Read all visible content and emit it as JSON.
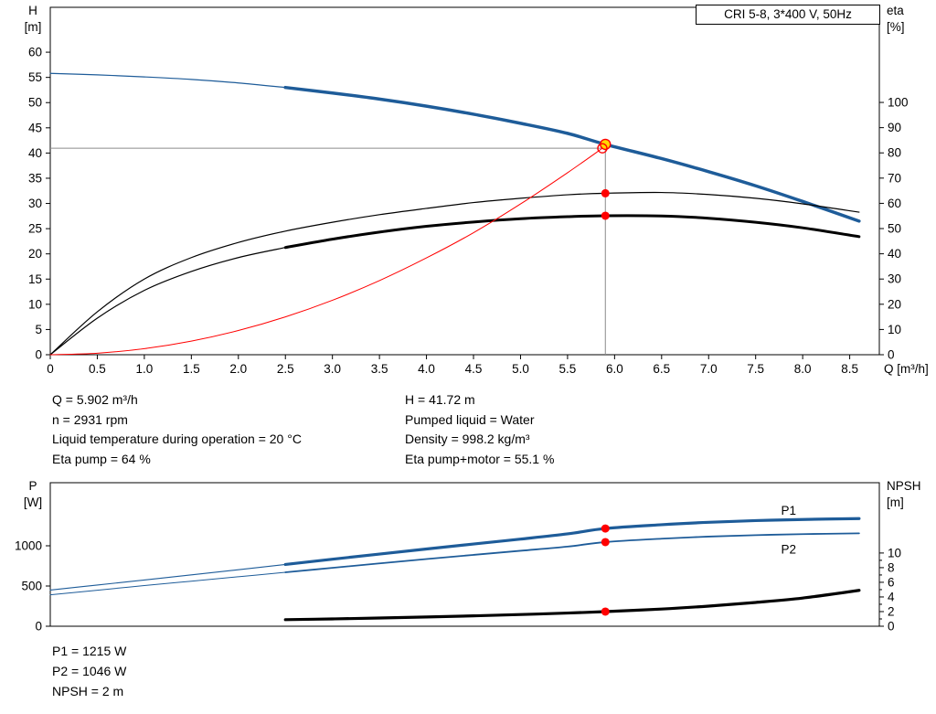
{
  "title_box": "CRI 5-8, 3*400 V, 50Hz",
  "colors": {
    "blue": "#1E5C99",
    "red": "#FF0000",
    "yellow": "#FFD800",
    "black": "#000000",
    "gray": "#8C8C8C"
  },
  "info_top": {
    "left": [
      "Q = 5.902 m³/h",
      "n = 2931 rpm",
      "Liquid temperature during operation = 20 °C",
      "Eta pump = 64 %"
    ],
    "right": [
      "H = 41.72 m",
      "Pumped liquid = Water",
      "Density = 998.2 kg/m³",
      "Eta pump+motor = 55.1 %"
    ]
  },
  "info_bottom": [
    "P1 = 1215 W",
    "P2 = 1046 W",
    "NPSH = 2 m"
  ],
  "chart_data": [
    {
      "type": "line",
      "name": "hq-eta-chart",
      "title": "CRI 5-8, 3*400 V, 50Hz",
      "x": {
        "min": 0,
        "max": 8.815,
        "title": "Q [m³/h]",
        "ticks": [
          0,
          0.5,
          1,
          1.5,
          2,
          2.5,
          3,
          3.5,
          4,
          4.5,
          5,
          5.5,
          6,
          6.5,
          7,
          7.5,
          8,
          8.5
        ],
        "labels": [
          "0",
          "0.5",
          "1.0",
          "1.5",
          "2.0",
          "2.5",
          "3.0",
          "3.5",
          "4.0",
          "4.5",
          "5.0",
          "5.5",
          "6.0",
          "6.5",
          "7.0",
          "7.5",
          "8.0",
          "8.5"
        ]
      },
      "y_left": {
        "min": 0,
        "max": 68.9,
        "title_lines": [
          "H",
          "[m]"
        ],
        "ticks": [
          0,
          5,
          10,
          15,
          20,
          25,
          30,
          35,
          40,
          45,
          50,
          55,
          60
        ]
      },
      "y_right": {
        "min": 0,
        "max": 137.7,
        "title_lines": [
          "eta",
          "[%]"
        ],
        "ticks": [
          0,
          10,
          20,
          30,
          40,
          50,
          60,
          70,
          80,
          90,
          100
        ]
      },
      "series": [
        {
          "name": "pump-curve",
          "axis": "left",
          "color": "#1E5C99",
          "segments": [
            {
              "width": 1.2,
              "points": [
                [
                  0,
                  55.8
                ],
                [
                  0.5,
                  55.5
                ],
                [
                  1,
                  55.1
                ],
                [
                  1.5,
                  54.6
                ],
                [
                  2,
                  53.9
                ],
                [
                  2.5,
                  53.0
                ]
              ]
            },
            {
              "width": 3.5,
              "points": [
                [
                  2.5,
                  53.0
                ],
                [
                  3,
                  51.9
                ],
                [
                  3.5,
                  50.7
                ],
                [
                  4,
                  49.3
                ],
                [
                  4.5,
                  47.7
                ],
                [
                  5,
                  45.9
                ],
                [
                  5.5,
                  43.9
                ],
                [
                  5.902,
                  41.72
                ],
                [
                  6.5,
                  38.9
                ],
                [
                  7,
                  36.3
                ],
                [
                  7.5,
                  33.5
                ],
                [
                  8,
                  30.4
                ],
                [
                  8.6,
                  26.5
                ]
              ]
            }
          ]
        },
        {
          "name": "eta-pump-curve",
          "axis": "right",
          "color": "#000000",
          "segments": [
            {
              "width": 1.2,
              "points": [
                [
                  0,
                  0
                ],
                [
                  0.5,
                  17
                ],
                [
                  1,
                  30
                ],
                [
                  1.5,
                  38.5
                ],
                [
                  2,
                  44.5
                ],
                [
                  2.5,
                  49
                ],
                [
                  3,
                  52.5
                ],
                [
                  3.5,
                  55.5
                ],
                [
                  4,
                  58
                ],
                [
                  4.5,
                  60.3
                ],
                [
                  5,
                  62
                ],
                [
                  5.5,
                  63.4
                ],
                [
                  5.902,
                  64
                ],
                [
                  6.5,
                  64.3
                ],
                [
                  7,
                  63.5
                ],
                [
                  7.5,
                  62
                ],
                [
                  8,
                  59.8
                ],
                [
                  8.6,
                  56.5
                ]
              ]
            }
          ]
        },
        {
          "name": "eta-pump-motor-curve",
          "axis": "right",
          "color": "#000000",
          "segments": [
            {
              "width": 1.2,
              "points": [
                [
                  0,
                  0
                ],
                [
                  0.5,
                  14.5
                ],
                [
                  1,
                  25.5
                ],
                [
                  1.5,
                  33
                ],
                [
                  2,
                  38.5
                ],
                [
                  2.5,
                  42.5
                ]
              ]
            },
            {
              "width": 3.0,
              "points": [
                [
                  2.5,
                  42.5
                ],
                [
                  3,
                  45.8
                ],
                [
                  3.5,
                  48.6
                ],
                [
                  4,
                  50.9
                ],
                [
                  4.5,
                  52.6
                ],
                [
                  5,
                  53.9
                ],
                [
                  5.5,
                  54.7
                ],
                [
                  5.902,
                  55.1
                ],
                [
                  6.5,
                  55.0
                ],
                [
                  7,
                  54.1
                ],
                [
                  7.5,
                  52.5
                ],
                [
                  8,
                  50.3
                ],
                [
                  8.6,
                  46.8
                ]
              ]
            }
          ]
        },
        {
          "name": "system-curve",
          "axis": "left",
          "color": "#FF0000",
          "segments": [
            {
              "width": 1.0,
              "points": [
                [
                  0,
                  0
                ],
                [
                  0.5,
                  0.3
                ],
                [
                  1,
                  1.2
                ],
                [
                  1.5,
                  2.7
                ],
                [
                  2,
                  4.8
                ],
                [
                  2.5,
                  7.5
                ],
                [
                  3,
                  10.8
                ],
                [
                  3.5,
                  14.7
                ],
                [
                  4,
                  19.2
                ],
                [
                  4.5,
                  24.2
                ],
                [
                  5,
                  29.9
                ],
                [
                  5.5,
                  36.1
                ],
                [
                  5.87,
                  40.95
                ]
              ]
            }
          ]
        }
      ],
      "crosshair": {
        "q": 5.902,
        "h": 40.95,
        "top": 41.9
      },
      "markers": [
        {
          "name": "duty-point",
          "shape": "duty",
          "q": 5.902,
          "v": 41.72,
          "axis": "left",
          "r": 5.5
        },
        {
          "name": "requested-duty-point",
          "shape": "open",
          "q": 5.87,
          "v": 40.95,
          "axis": "left",
          "r": 5
        },
        {
          "name": "eta-pump-point",
          "shape": "dot",
          "q": 5.902,
          "v": 64,
          "axis": "right",
          "r": 4.5
        },
        {
          "name": "eta-pump-motor-point",
          "shape": "dot",
          "q": 5.902,
          "v": 55.1,
          "axis": "right",
          "r": 4.5
        }
      ],
      "annotations": []
    },
    {
      "type": "line",
      "name": "power-npsh-chart",
      "title": "",
      "x": {
        "min": 0,
        "max": 8.815,
        "title": "",
        "ticks": [],
        "labels": []
      },
      "y_left": {
        "min": 0,
        "max": 1784,
        "title_lines": [
          "P",
          "[W]"
        ],
        "ticks": [
          0,
          500,
          1000
        ]
      },
      "y_right": {
        "min": 0,
        "max": 19.6,
        "title_lines": [
          "NPSH",
          "[m]"
        ],
        "ticks": [
          0,
          2,
          4,
          6,
          8,
          10
        ],
        "minor": [
          1,
          3,
          5,
          7,
          9
        ]
      },
      "series": [
        {
          "name": "p1-curve",
          "axis": "left",
          "color": "#1E5C99",
          "segments": [
            {
              "width": 1.1,
              "points": [
                [
                  0,
                  450
                ],
                [
                  0.5,
                  512
                ],
                [
                  1,
                  575
                ],
                [
                  1.5,
                  638
                ],
                [
                  2,
                  702
                ],
                [
                  2.5,
                  768
                ]
              ]
            },
            {
              "width": 3.2,
              "points": [
                [
                  2.5,
                  768
                ],
                [
                  3,
                  833
                ],
                [
                  3.5,
                  897
                ],
                [
                  4,
                  960
                ],
                [
                  4.5,
                  1022
                ],
                [
                  5,
                  1083
                ],
                [
                  5.5,
                  1148
                ],
                [
                  5.902,
                  1215
                ],
                [
                  6.5,
                  1262
                ],
                [
                  7,
                  1292
                ],
                [
                  7.5,
                  1313
                ],
                [
                  8,
                  1327
                ],
                [
                  8.6,
                  1338
                ]
              ]
            }
          ]
        },
        {
          "name": "p2-curve",
          "axis": "left",
          "color": "#1E5C99",
          "segments": [
            {
              "width": 1.0,
              "points": [
                [
                  0,
                  390
                ],
                [
                  0.5,
                  448
                ],
                [
                  1,
                  505
                ],
                [
                  1.5,
                  560
                ],
                [
                  2,
                  615
                ],
                [
                  2.5,
                  670
                ]
              ]
            },
            {
              "width": 1.8,
              "points": [
                [
                  2.5,
                  670
                ],
                [
                  3,
                  726
                ],
                [
                  3.5,
                  781
                ],
                [
                  4,
                  835
                ],
                [
                  4.5,
                  887
                ],
                [
                  5,
                  938
                ],
                [
                  5.5,
                  990
                ],
                [
                  5.902,
                  1046
                ],
                [
                  6.5,
                  1088
                ],
                [
                  7,
                  1114
                ],
                [
                  7.5,
                  1132
                ],
                [
                  8,
                  1145
                ],
                [
                  8.6,
                  1155
                ]
              ]
            }
          ]
        },
        {
          "name": "npsh-curve",
          "axis": "right",
          "color": "#000000",
          "segments": [
            {
              "width": 3.2,
              "points": [
                [
                  2.5,
                  0.9
                ],
                [
                  3,
                  1.0
                ],
                [
                  3.5,
                  1.12
                ],
                [
                  4,
                  1.26
                ],
                [
                  4.5,
                  1.42
                ],
                [
                  5,
                  1.6
                ],
                [
                  5.5,
                  1.8
                ],
                [
                  5.902,
                  2.0
                ],
                [
                  6.5,
                  2.35
                ],
                [
                  7,
                  2.75
                ],
                [
                  7.5,
                  3.25
                ],
                [
                  8,
                  3.85
                ],
                [
                  8.6,
                  4.9
                ]
              ]
            }
          ]
        }
      ],
      "markers": [
        {
          "name": "p1-point",
          "shape": "dot",
          "q": 5.902,
          "v": 1215,
          "axis": "left",
          "r": 4.5
        },
        {
          "name": "p2-point",
          "shape": "dot",
          "q": 5.902,
          "v": 1046,
          "axis": "left",
          "r": 4.5
        },
        {
          "name": "npsh-point",
          "shape": "dot",
          "q": 5.902,
          "v": 2.0,
          "axis": "right",
          "r": 4.5
        }
      ],
      "annotations": [
        {
          "name": "p1-label",
          "text": "P1",
          "q": 7.85,
          "v": 1430,
          "axis": "left",
          "color": "#1E5C99"
        },
        {
          "name": "p2-label",
          "text": "P2",
          "q": 7.85,
          "v": 950,
          "axis": "left",
          "color": "#1E5C99"
        }
      ]
    }
  ]
}
